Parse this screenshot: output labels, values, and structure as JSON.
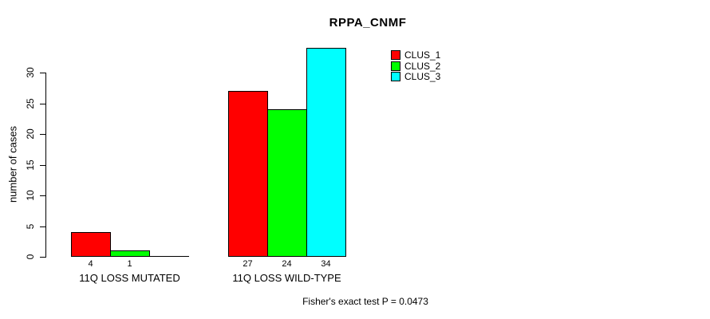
{
  "title": "RPPA_CNMF",
  "footer": "Fisher's exact test P = 0.0473",
  "chart_data": {
    "type": "bar",
    "title": "RPPA_CNMF",
    "ylabel": "number of cases",
    "xlabel": "",
    "categories": [
      "11Q LOSS MUTATED",
      "11Q LOSS WILD-TYPE"
    ],
    "series": [
      {
        "name": "CLUS_1",
        "color": "#ff0000",
        "values": [
          4,
          27
        ]
      },
      {
        "name": "CLUS_2",
        "color": "#00ff00",
        "values": [
          1,
          24
        ]
      },
      {
        "name": "CLUS_3",
        "color": "#00ffff",
        "values": [
          0,
          34
        ]
      }
    ],
    "bar_value_labels": [
      [
        "4",
        "1",
        ""
      ],
      [
        "27",
        "24",
        "34"
      ]
    ],
    "yticks": [
      0,
      5,
      10,
      15,
      20,
      25,
      30
    ],
    "ylim": [
      0,
      34
    ],
    "grid": false,
    "legend_position": "right-top",
    "annotation": "Fisher's exact test P = 0.0473"
  },
  "legend": {
    "items": [
      {
        "label": "CLUS_1",
        "color": "#ff0000"
      },
      {
        "label": "CLUS_2",
        "color": "#00ff00"
      },
      {
        "label": "CLUS_3",
        "color": "#00ffff"
      }
    ]
  }
}
